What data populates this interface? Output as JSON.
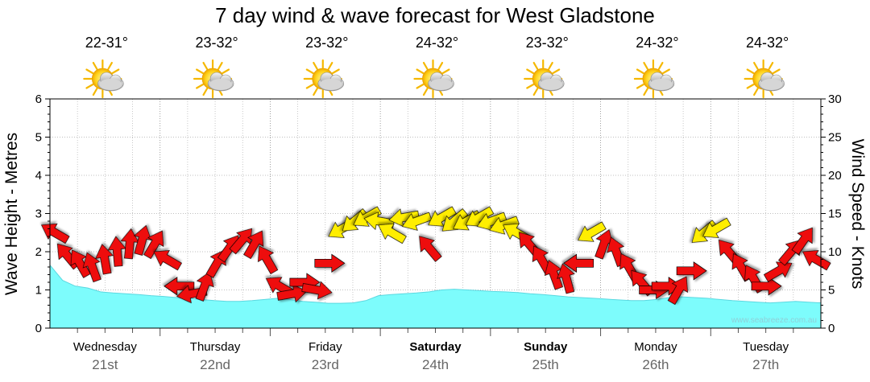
{
  "chart_data": {
    "type": "area",
    "title": "7 day wind & wave forecast for West Gladstone",
    "ylabel_left": "Wave Height - Metres",
    "ylabel_right": "Wind Speed - Knots",
    "ylim_left": [
      0,
      6
    ],
    "ylim_right": [
      0,
      30
    ],
    "left_ticks": [
      "0",
      "1",
      "2",
      "3",
      "4",
      "5",
      "6"
    ],
    "right_ticks": [
      "0",
      "5",
      "10",
      "15",
      "20",
      "25",
      "30"
    ],
    "credit": "www.seabreeze.com.au",
    "days": [
      {
        "name": "Wednesday",
        "date": "21st",
        "temp": "22-31°",
        "bold": false
      },
      {
        "name": "Thursday",
        "date": "22nd",
        "temp": "23-32°",
        "bold": false
      },
      {
        "name": "Friday",
        "date": "23rd",
        "temp": "23-32°",
        "bold": false
      },
      {
        "name": "Saturday",
        "date": "24th",
        "temp": "24-32°",
        "bold": true
      },
      {
        "name": "Sunday",
        "date": "25th",
        "temp": "23-32°",
        "bold": true
      },
      {
        "name": "Monday",
        "date": "26th",
        "temp": "24-32°",
        "bold": false
      },
      {
        "name": "Tuesday",
        "date": "27th",
        "temp": "24-32°",
        "bold": false
      }
    ],
    "weather_icon": "partly-cloudy-sun-icon",
    "wave_height_m": [
      1.65,
      1.25,
      1.1,
      1.05,
      0.95,
      0.92,
      0.9,
      0.88,
      0.85,
      0.83,
      0.8,
      0.78,
      0.75,
      0.72,
      0.7,
      0.7,
      0.72,
      0.75,
      0.78,
      0.75,
      0.7,
      0.68,
      0.65,
      0.65,
      0.66,
      0.72,
      0.85,
      0.88,
      0.9,
      0.92,
      0.95,
      1.0,
      1.02,
      1.0,
      0.98,
      0.96,
      0.95,
      0.93,
      0.9,
      0.88,
      0.85,
      0.82,
      0.8,
      0.78,
      0.76,
      0.74,
      0.72,
      0.72,
      0.75,
      0.8,
      0.82,
      0.8,
      0.78,
      0.75,
      0.72,
      0.7,
      0.68,
      0.66,
      0.68,
      0.7,
      0.68,
      0.66
    ],
    "wind": {
      "unit": "knots",
      "colors": {
        "strong": "#ee1111",
        "moderate": "#ffee00"
      },
      "series": [
        {
          "speed": 12.5,
          "from": 300,
          "level": "strong"
        },
        {
          "speed": 9.5,
          "from": 320,
          "level": "strong"
        },
        {
          "speed": 8.5,
          "from": 330,
          "level": "strong"
        },
        {
          "speed": 8.0,
          "from": 340,
          "level": "strong"
        },
        {
          "speed": 9.0,
          "from": 350,
          "level": "strong"
        },
        {
          "speed": 10.0,
          "from": 355,
          "level": "strong"
        },
        {
          "speed": 11.0,
          "from": 5,
          "level": "strong"
        },
        {
          "speed": 11.5,
          "from": 15,
          "level": "strong"
        },
        {
          "speed": 11.0,
          "from": 30,
          "level": "strong"
        },
        {
          "speed": 9.0,
          "from": 300,
          "level": "strong"
        },
        {
          "speed": 5.5,
          "from": 270,
          "level": "strong"
        },
        {
          "speed": 4.5,
          "from": 260,
          "level": "strong"
        },
        {
          "speed": 5.5,
          "from": 20,
          "level": "strong"
        },
        {
          "speed": 8.5,
          "from": 30,
          "level": "strong"
        },
        {
          "speed": 10.5,
          "from": 35,
          "level": "strong"
        },
        {
          "speed": 11.5,
          "from": 40,
          "level": "strong"
        },
        {
          "speed": 11.0,
          "from": 30,
          "level": "strong"
        },
        {
          "speed": 9.0,
          "from": 330,
          "level": "strong"
        },
        {
          "speed": 5.5,
          "from": 300,
          "level": "strong"
        },
        {
          "speed": 4.5,
          "from": 80,
          "level": "strong"
        },
        {
          "speed": 6.0,
          "from": 90,
          "level": "strong"
        },
        {
          "speed": 5.0,
          "from": 100,
          "level": "strong"
        },
        {
          "speed": 8.5,
          "from": 90,
          "level": "strong"
        },
        {
          "speed": 13.0,
          "from": 240,
          "level": "moderate"
        },
        {
          "speed": 14.0,
          "from": 230,
          "level": "moderate"
        },
        {
          "speed": 14.5,
          "from": 240,
          "level": "moderate"
        },
        {
          "speed": 14.0,
          "from": 280,
          "level": "moderate"
        },
        {
          "speed": 12.5,
          "from": 300,
          "level": "moderate"
        },
        {
          "speed": 14.5,
          "from": 260,
          "level": "moderate"
        },
        {
          "speed": 14.0,
          "from": 250,
          "level": "moderate"
        },
        {
          "speed": 10.5,
          "from": 320,
          "level": "strong"
        },
        {
          "speed": 14.5,
          "from": 240,
          "level": "moderate"
        },
        {
          "speed": 14.0,
          "from": 230,
          "level": "moderate"
        },
        {
          "speed": 14.0,
          "from": 240,
          "level": "moderate"
        },
        {
          "speed": 14.5,
          "from": 240,
          "level": "moderate"
        },
        {
          "speed": 14.0,
          "from": 250,
          "level": "moderate"
        },
        {
          "speed": 13.5,
          "from": 250,
          "level": "moderate"
        },
        {
          "speed": 12.5,
          "from": 300,
          "level": "moderate"
        },
        {
          "speed": 11.0,
          "from": 320,
          "level": "strong"
        },
        {
          "speed": 9.0,
          "from": 330,
          "level": "strong"
        },
        {
          "speed": 7.0,
          "from": 340,
          "level": "strong"
        },
        {
          "speed": 6.5,
          "from": 345,
          "level": "strong"
        },
        {
          "speed": 8.5,
          "from": 270,
          "level": "strong"
        },
        {
          "speed": 12.5,
          "from": 240,
          "level": "moderate"
        },
        {
          "speed": 11.0,
          "from": 20,
          "level": "strong"
        },
        {
          "speed": 10.0,
          "from": 340,
          "level": "strong"
        },
        {
          "speed": 8.0,
          "from": 330,
          "level": "strong"
        },
        {
          "speed": 6.0,
          "from": 320,
          "level": "strong"
        },
        {
          "speed": 5.0,
          "from": 90,
          "level": "strong"
        },
        {
          "speed": 5.5,
          "from": 90,
          "level": "strong"
        },
        {
          "speed": 5.0,
          "from": 30,
          "level": "strong"
        },
        {
          "speed": 7.5,
          "from": 90,
          "level": "strong"
        },
        {
          "speed": 12.5,
          "from": 230,
          "level": "moderate"
        },
        {
          "speed": 13.0,
          "from": 240,
          "level": "moderate"
        },
        {
          "speed": 10.0,
          "from": 320,
          "level": "strong"
        },
        {
          "speed": 8.0,
          "from": 330,
          "level": "strong"
        },
        {
          "speed": 6.5,
          "from": 330,
          "level": "strong"
        },
        {
          "speed": 5.5,
          "from": 90,
          "level": "strong"
        },
        {
          "speed": 7.5,
          "from": 60,
          "level": "strong"
        },
        {
          "speed": 10.0,
          "from": 40,
          "level": "strong"
        },
        {
          "speed": 11.5,
          "from": 35,
          "level": "strong"
        },
        {
          "speed": 9.0,
          "from": 300,
          "level": "strong"
        }
      ]
    }
  }
}
